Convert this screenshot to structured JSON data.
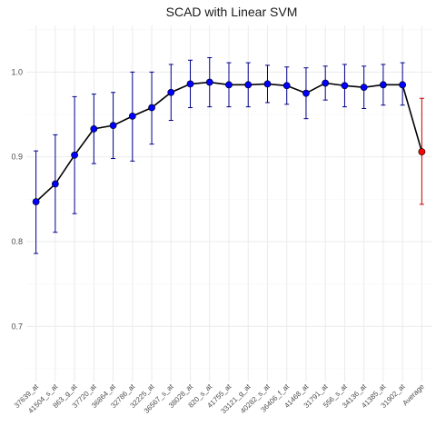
{
  "chart_data": {
    "type": "line",
    "title": "SCAD with Linear SVM",
    "xlabel": "",
    "ylabel": "",
    "ylim": [
      0.635,
      1.055
    ],
    "yticks": [
      0.7,
      0.8,
      0.9,
      1.0
    ],
    "ytick_labels": [
      "0.7",
      "0.8",
      "0.9",
      "1.0"
    ],
    "grid": true,
    "legend": "none",
    "colors": {
      "line": "#000000",
      "point": "#0000ff",
      "errorbar": "#00008b",
      "average_point": "#ff0000",
      "average_errorbar": "#cc0000"
    },
    "categories": [
      "37639_at",
      "41504_s_at",
      "863_g_at",
      "37720_at",
      "36864_at",
      "32786_at",
      "32225_at",
      "36567_s_at",
      "38028_at",
      "820_s_at",
      "41755_at",
      "33121_g_at",
      "40282_s_at",
      "36406_f_at",
      "41468_at",
      "31791_at",
      "556_s_at",
      "34136_at",
      "41385_at",
      "31902_at",
      "Average"
    ],
    "values": [
      0.847,
      0.868,
      0.902,
      0.933,
      0.937,
      0.948,
      0.958,
      0.976,
      0.986,
      0.988,
      0.985,
      0.985,
      0.986,
      0.984,
      0.975,
      0.987,
      0.984,
      0.982,
      0.985,
      0.985,
      0.906
    ],
    "lower": [
      0.786,
      0.811,
      0.833,
      0.892,
      0.898,
      0.895,
      0.915,
      0.943,
      0.958,
      0.959,
      0.959,
      0.959,
      0.964,
      0.962,
      0.945,
      0.967,
      0.959,
      0.957,
      0.961,
      0.961,
      0.844
    ],
    "upper": [
      0.907,
      0.926,
      0.971,
      0.974,
      0.976,
      1.0,
      1.0,
      1.009,
      1.014,
      1.017,
      1.011,
      1.011,
      1.008,
      1.006,
      1.005,
      1.007,
      1.009,
      1.007,
      1.009,
      1.011,
      0.969
    ]
  }
}
